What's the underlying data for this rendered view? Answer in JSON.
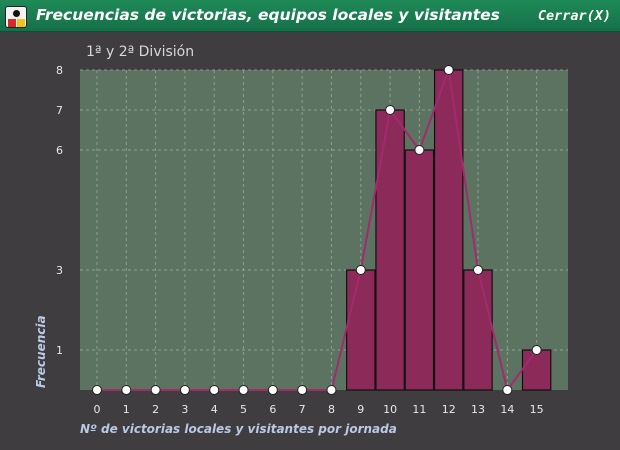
{
  "window": {
    "title": "Frecuencias de victorias, equipos locales y visitantes",
    "close_label": "Cerrar(X)"
  },
  "chart_data": {
    "type": "bar",
    "title": "1ª y 2ª División",
    "xlabel": "Nº de victorias locales y visitantes por jornada",
    "ylabel": "Frecuencia",
    "categories": [
      "0",
      "1",
      "2",
      "3",
      "4",
      "5",
      "6",
      "7",
      "8",
      "9",
      "10",
      "11",
      "12",
      "13",
      "14",
      "15"
    ],
    "values": [
      0,
      0,
      0,
      0,
      0,
      0,
      0,
      0,
      0,
      3,
      7,
      6,
      8,
      3,
      0,
      1
    ],
    "yticks": [
      1,
      3,
      6,
      7,
      8
    ],
    "ylim": [
      0,
      8
    ],
    "grid": true,
    "overlay_line": true,
    "colors": {
      "plot_bg": "#5d7362",
      "bar": "#8c2a5a",
      "line": "#a32a6c",
      "marker": "#ffffff",
      "grid": "#8aa08e"
    }
  }
}
